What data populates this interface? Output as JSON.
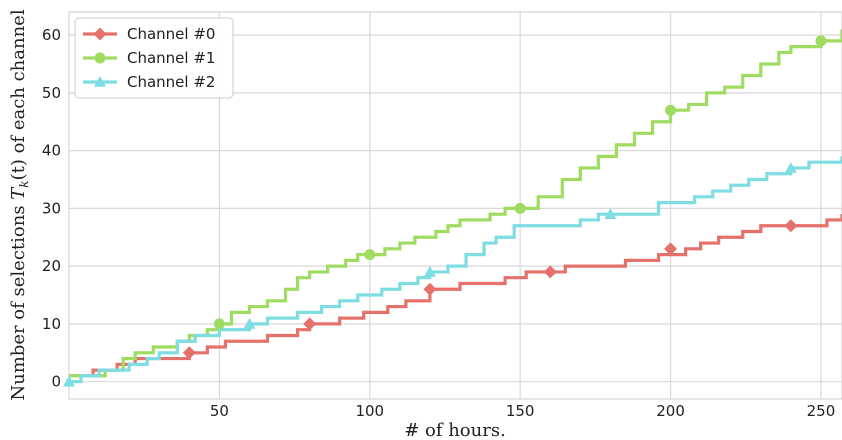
{
  "chart_data": {
    "type": "line",
    "xlabel": "# of hours.",
    "ylabel": "Number of selections T_k(t) of each channel",
    "ylabel_parts": {
      "pre": "Number of selections ",
      "T": "T",
      "k": "k",
      "paren": "(t)",
      "post": " of each channel"
    },
    "xlim": [
      0,
      257
    ],
    "ylim": [
      -3,
      64
    ],
    "xticks": [
      50,
      100,
      150,
      200,
      250
    ],
    "xtick_labels": [
      "50",
      "100",
      "150",
      "200",
      "250"
    ],
    "yticks": [
      0,
      10,
      20,
      30,
      40,
      50,
      60
    ],
    "ytick_labels": [
      "0",
      "10",
      "20",
      "30",
      "40",
      "50",
      "60"
    ],
    "grid": true,
    "legend_position": "top-left",
    "series": [
      {
        "name": "Channel #0",
        "color": "#e5716b",
        "marker": "diamond",
        "x": [
          0,
          3,
          8,
          16,
          22,
          36,
          40,
          46,
          52,
          60,
          66,
          76,
          80,
          85,
          90,
          98,
          106,
          112,
          120,
          126,
          130,
          145,
          152,
          165,
          185,
          196,
          205,
          210,
          216,
          224,
          230,
          245,
          252,
          257
        ],
        "y": [
          1,
          1,
          2,
          3,
          4,
          4,
          5,
          6,
          7,
          7,
          8,
          9,
          10,
          10,
          11,
          12,
          13,
          14,
          16,
          16,
          17,
          18,
          19,
          20,
          21,
          22,
          23,
          24,
          25,
          26,
          27,
          27,
          28,
          29
        ],
        "marker_x": [
          40,
          80,
          120,
          160,
          200,
          240
        ],
        "marker_y": [
          5,
          10,
          16,
          19,
          23,
          27
        ]
      },
      {
        "name": "Channel #1",
        "color": "#9fdc61",
        "marker": "circle",
        "x": [
          0,
          8,
          12,
          18,
          22,
          28,
          36,
          40,
          46,
          50,
          54,
          60,
          66,
          72,
          76,
          80,
          86,
          92,
          96,
          100,
          105,
          110,
          115,
          122,
          126,
          130,
          140,
          145,
          150,
          156,
          164,
          170,
          176,
          182,
          188,
          194,
          200,
          206,
          212,
          218,
          224,
          230,
          236,
          240,
          244,
          250,
          257
        ],
        "y": [
          1,
          1,
          2,
          4,
          5,
          6,
          7,
          8,
          9,
          10,
          12,
          13,
          14,
          16,
          18,
          19,
          20,
          21,
          22,
          22,
          23,
          24,
          25,
          26,
          27,
          28,
          29,
          30,
          30,
          32,
          35,
          37,
          39,
          41,
          43,
          45,
          47,
          48,
          50,
          51,
          53,
          55,
          57,
          58,
          58,
          59,
          61
        ],
        "marker_x": [
          50,
          100,
          150,
          200,
          250
        ],
        "marker_y": [
          10,
          22,
          30,
          47,
          59
        ]
      },
      {
        "name": "Channel #2",
        "color": "#7ddde3",
        "marker": "triangle",
        "x": [
          0,
          4,
          10,
          20,
          26,
          30,
          36,
          42,
          50,
          60,
          66,
          76,
          84,
          90,
          96,
          104,
          110,
          116,
          120,
          126,
          132,
          138,
          142,
          148,
          160,
          170,
          176,
          186,
          196,
          202,
          208,
          214,
          220,
          226,
          232,
          240,
          246,
          252,
          257
        ],
        "y": [
          0,
          1,
          2,
          3,
          4,
          5,
          7,
          8,
          9,
          10,
          11,
          12,
          13,
          14,
          15,
          16,
          17,
          18,
          19,
          20,
          22,
          24,
          25,
          27,
          27,
          28,
          29,
          29,
          31,
          31,
          32,
          33,
          34,
          35,
          36,
          37,
          38,
          38,
          39
        ],
        "marker_x": [
          0,
          60,
          120,
          180,
          240
        ],
        "marker_y": [
          0,
          10,
          19,
          29,
          37
        ]
      }
    ]
  }
}
